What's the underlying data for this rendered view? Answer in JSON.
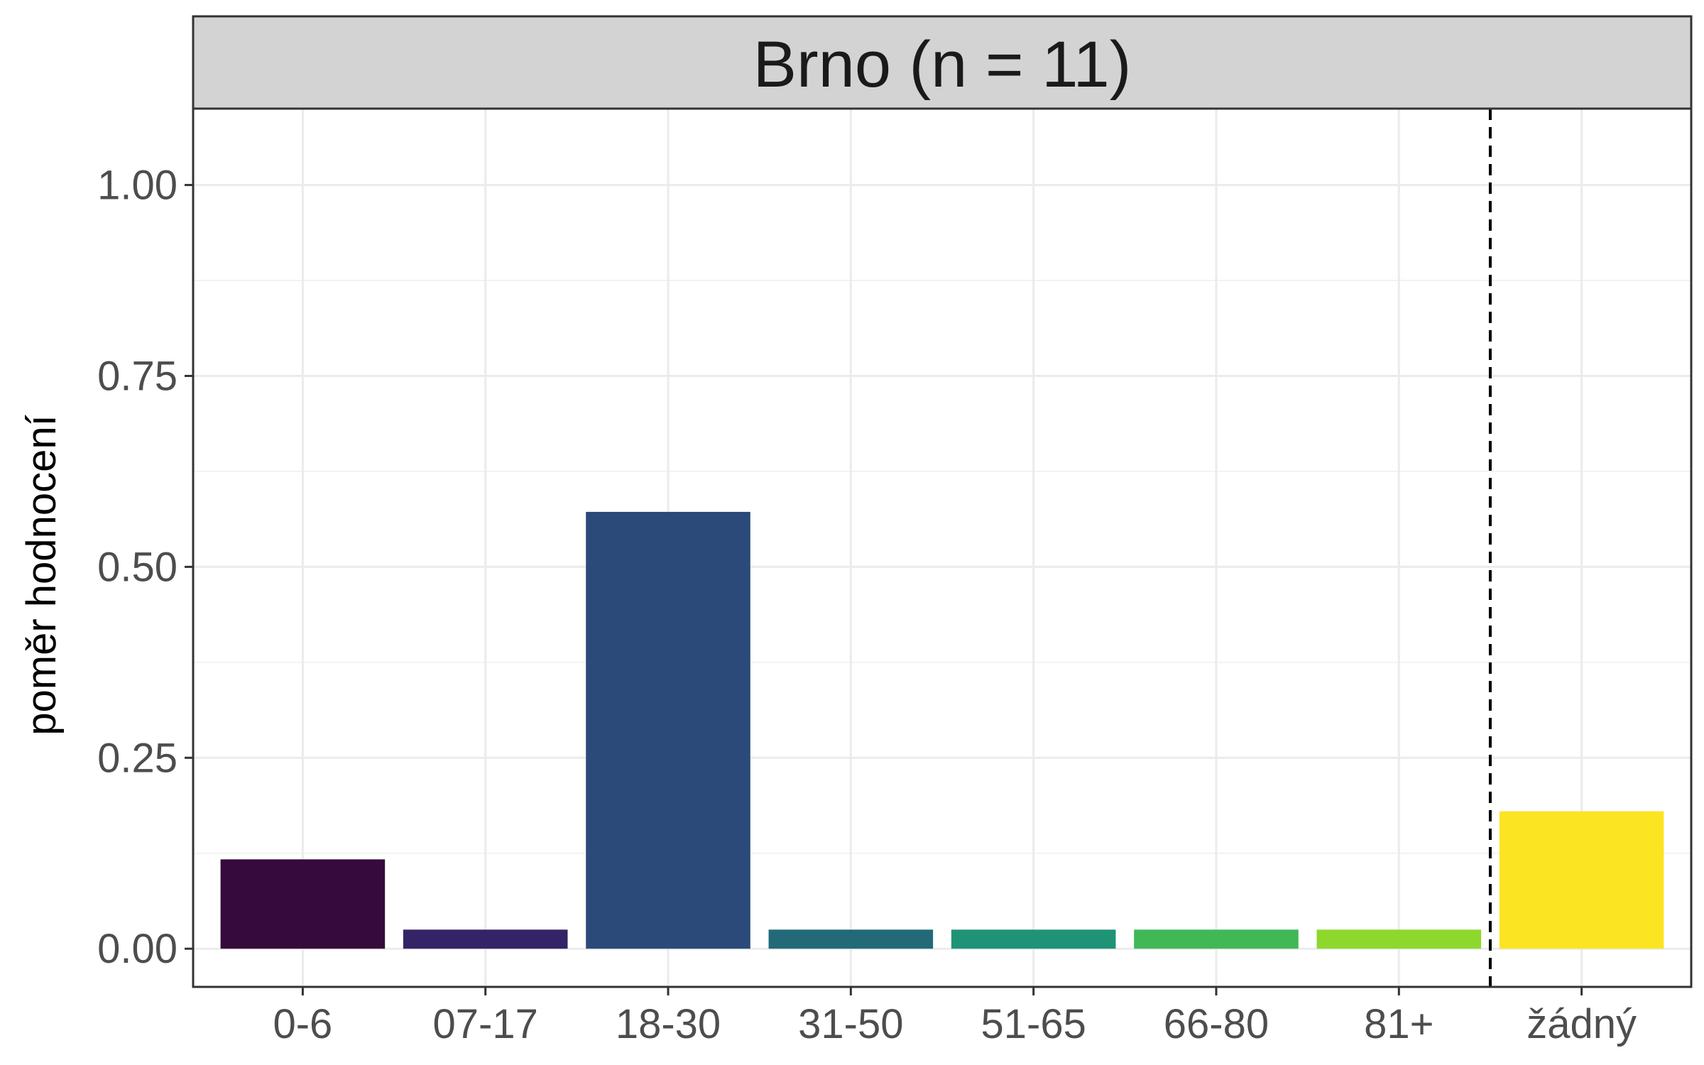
{
  "chart_data": {
    "type": "bar",
    "title": "Brno (n = 11)",
    "xlabel": "",
    "ylabel": "poměr hodnocení",
    "categories": [
      "0-6",
      "07-17",
      "18-30",
      "31-50",
      "51-65",
      "66-80",
      "81+",
      "žádný"
    ],
    "values": [
      0.117,
      0.025,
      0.572,
      0.025,
      0.025,
      0.025,
      0.025,
      0.18
    ],
    "colors": [
      "#360a3c",
      "#342367",
      "#2b4a7a",
      "#226a78",
      "#1f9376",
      "#40b856",
      "#8ed82e",
      "#fbe422"
    ],
    "ylim": [
      -0.05,
      1.1
    ],
    "yticks": [
      0.0,
      0.25,
      0.5,
      0.75,
      1.0
    ],
    "ytick_labels": [
      "0.00",
      "0.25",
      "0.50",
      "0.75",
      "1.00"
    ],
    "grid": true,
    "annotations": [
      {
        "type": "vline",
        "style": "dashed",
        "between": [
          "81+",
          "žádný"
        ]
      }
    ]
  }
}
